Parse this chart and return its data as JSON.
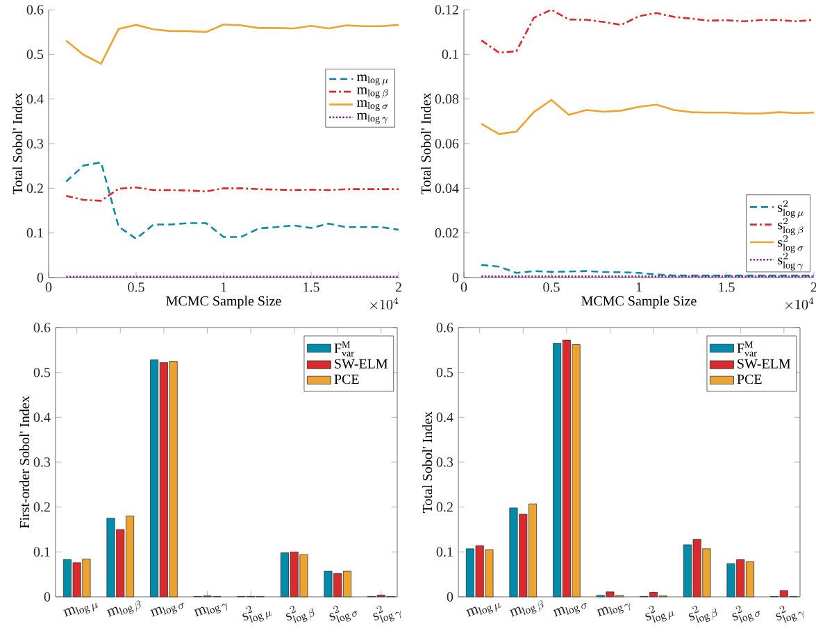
{
  "chart_data": [
    {
      "type": "line",
      "xlabel": "MCMC Sample Size",
      "ylabel": "Total Sobol' Index",
      "x": [
        0.1,
        0.2,
        0.3,
        0.4,
        0.5,
        0.6,
        0.7,
        0.8,
        0.9,
        1.0,
        1.1,
        1.2,
        1.3,
        1.4,
        1.5,
        1.6,
        1.7,
        1.8,
        1.9,
        2.0
      ],
      "xlim": [
        0,
        2
      ],
      "xticks": [
        0,
        0.5,
        1,
        1.5,
        2
      ],
      "ylim": [
        0,
        0.6
      ],
      "yticks": [
        0,
        0.1,
        0.2,
        0.3,
        0.4,
        0.5,
        0.6
      ],
      "legend": "right",
      "annotations": [
        "\\times 10^{4}"
      ],
      "series": [
        {
          "name": "\\mathrm{m}_{\\log\\mu}",
          "color": "#0e8aa8",
          "line_style": "dashed",
          "values": [
            0.215,
            0.251,
            0.258,
            0.114,
            0.087,
            0.119,
            0.119,
            0.122,
            0.122,
            0.091,
            0.091,
            0.11,
            0.113,
            0.117,
            0.111,
            0.121,
            0.113,
            0.113,
            0.113,
            0.107
          ]
        },
        {
          "name": "\\mathrm{m}_{\\log\\beta}",
          "color": "#d62c2f",
          "line_style": "dashdot",
          "values": [
            0.183,
            0.174,
            0.172,
            0.199,
            0.202,
            0.196,
            0.196,
            0.195,
            0.193,
            0.2,
            0.2,
            0.198,
            0.197,
            0.196,
            0.197,
            0.196,
            0.198,
            0.198,
            0.198,
            0.198
          ]
        },
        {
          "name": "\\mathrm{m}_{\\log\\sigma}",
          "color": "#eca330",
          "line_style": "solid",
          "values": [
            0.531,
            0.499,
            0.479,
            0.557,
            0.566,
            0.556,
            0.552,
            0.552,
            0.55,
            0.567,
            0.565,
            0.559,
            0.559,
            0.558,
            0.564,
            0.558,
            0.565,
            0.563,
            0.563,
            0.566
          ]
        },
        {
          "name": "\\mathrm{m}_{\\log\\gamma}",
          "color": "#7e1e8c",
          "line_style": "dotted",
          "values": [
            0.002,
            0.002,
            0.002,
            0.002,
            0.002,
            0.002,
            0.002,
            0.002,
            0.002,
            0.002,
            0.002,
            0.002,
            0.002,
            0.002,
            0.002,
            0.002,
            0.002,
            0.002,
            0.002,
            0.002
          ]
        }
      ]
    },
    {
      "type": "line",
      "xlabel": "MCMC Sample Size",
      "ylabel": "Total Sobol' Index",
      "x": [
        0.1,
        0.2,
        0.3,
        0.4,
        0.5,
        0.6,
        0.7,
        0.8,
        0.9,
        1.0,
        1.1,
        1.2,
        1.3,
        1.4,
        1.5,
        1.6,
        1.7,
        1.8,
        1.9,
        2.0
      ],
      "xlim": [
        0,
        2
      ],
      "xticks": [
        0,
        0.5,
        1,
        1.5,
        2
      ],
      "ylim": [
        0,
        0.12
      ],
      "yticks": [
        0,
        0.02,
        0.04,
        0.06,
        0.08,
        0.1,
        0.12
      ],
      "legend": "bottom right",
      "annotations": [
        "\\times 10^{4}"
      ],
      "series": [
        {
          "name": "\\mathrm{s}^{2}_{\\log\\mu}",
          "color": "#0e8aa8",
          "line_style": "dashed",
          "values": [
            0.0057,
            0.0049,
            0.0021,
            0.0029,
            0.0026,
            0.0027,
            0.0029,
            0.0025,
            0.0024,
            0.0021,
            0.0014,
            0.0009,
            0.0009,
            0.0009,
            0.0009,
            0.0009,
            0.0009,
            0.0009,
            0.0009,
            0.0009
          ]
        },
        {
          "name": "\\mathrm{s}^{2}_{\\log\\beta}",
          "color": "#d62c2f",
          "line_style": "dashdot",
          "values": [
            0.1063,
            0.1008,
            0.1014,
            0.1164,
            0.12,
            0.1156,
            0.1155,
            0.1145,
            0.1132,
            0.1171,
            0.1185,
            0.1168,
            0.116,
            0.1151,
            0.1153,
            0.1148,
            0.1154,
            0.1154,
            0.1148,
            0.1155
          ]
        },
        {
          "name": "\\mathrm{s}^{2}_{\\log\\sigma}",
          "color": "#eca330",
          "line_style": "solid",
          "values": [
            0.0689,
            0.0643,
            0.0654,
            0.0742,
            0.0796,
            0.0729,
            0.0751,
            0.0743,
            0.0748,
            0.0765,
            0.0775,
            0.0751,
            0.0741,
            0.0739,
            0.0739,
            0.0735,
            0.0735,
            0.0741,
            0.0737,
            0.0739
          ]
        },
        {
          "name": "\\mathrm{s}^{2}_{\\log\\gamma}",
          "color": "#7e1e8c",
          "line_style": "dotted",
          "values": [
            0.0005,
            0.0005,
            0.0005,
            0.0005,
            0.0005,
            0.0005,
            0.0005,
            0.0005,
            0.0005,
            0.0005,
            0.0005,
            0.0005,
            0.0005,
            0.0005,
            0.0005,
            0.0005,
            0.0005,
            0.0005,
            0.0005,
            0.0005
          ]
        }
      ]
    },
    {
      "type": "bar",
      "ylabel": "First-order Sobol' Index",
      "categories": [
        "\\mathrm{m}_{\\log\\mu}",
        "\\mathrm{m}_{\\log\\beta}",
        "\\mathrm{m}_{\\log\\sigma}",
        "\\mathrm{m}_{\\log\\gamma}",
        "\\mathrm{s}^{2}_{\\log\\mu}",
        "\\mathrm{s}^{2}_{\\log\\beta}",
        "\\mathrm{s}^{2}_{\\log\\sigma}",
        "\\mathrm{s}^{2}_{\\log\\gamma}"
      ],
      "ylim": [
        0,
        0.6
      ],
      "yticks": [
        0,
        0.1,
        0.2,
        0.3,
        0.4,
        0.5,
        0.6
      ],
      "legend": "top right",
      "series": [
        {
          "name": "\\mathrm{F}^{\\mathrm{M}}_{\\mathrm{var}}",
          "color": "#008ba8",
          "values": [
            0.083,
            0.175,
            0.528,
            0.001,
            0.001,
            0.098,
            0.057,
            0.001
          ]
        },
        {
          "name": "SW-ELM",
          "color": "#d92b2e",
          "values": [
            0.076,
            0.15,
            0.522,
            0.002,
            0.001,
            0.1,
            0.052,
            0.004
          ]
        },
        {
          "name": "PCE",
          "color": "#eda32f",
          "values": [
            0.084,
            0.18,
            0.525,
            0.001,
            0.001,
            0.094,
            0.057,
            0.001
          ]
        }
      ]
    },
    {
      "type": "bar",
      "ylabel": "Total Sobol' Index",
      "categories": [
        "\\mathrm{m}_{\\log\\mu}",
        "\\mathrm{m}_{\\log\\beta}",
        "\\mathrm{m}_{\\log\\sigma}",
        "\\mathrm{m}_{\\log\\gamma}",
        "\\mathrm{s}^{2}_{\\log\\mu}",
        "\\mathrm{s}^{2}_{\\log\\beta}",
        "\\mathrm{s}^{2}_{\\log\\sigma}",
        "\\mathrm{s}^{2}_{\\log\\gamma}"
      ],
      "ylim": [
        0,
        0.6
      ],
      "yticks": [
        0,
        0.1,
        0.2,
        0.3,
        0.4,
        0.5,
        0.6
      ],
      "legend": "top right",
      "series": [
        {
          "name": "\\mathrm{F}^{\\mathrm{M}}_{\\mathrm{var}}",
          "color": "#008ba8",
          "values": [
            0.107,
            0.198,
            0.565,
            0.003,
            0.001,
            0.116,
            0.074,
            0.001
          ]
        },
        {
          "name": "SW-ELM",
          "color": "#d92b2e",
          "values": [
            0.114,
            0.184,
            0.572,
            0.011,
            0.01,
            0.128,
            0.083,
            0.014
          ]
        },
        {
          "name": "PCE",
          "color": "#eda32f",
          "values": [
            0.105,
            0.207,
            0.562,
            0.003,
            0.002,
            0.107,
            0.078,
            0.001
          ]
        }
      ]
    }
  ]
}
